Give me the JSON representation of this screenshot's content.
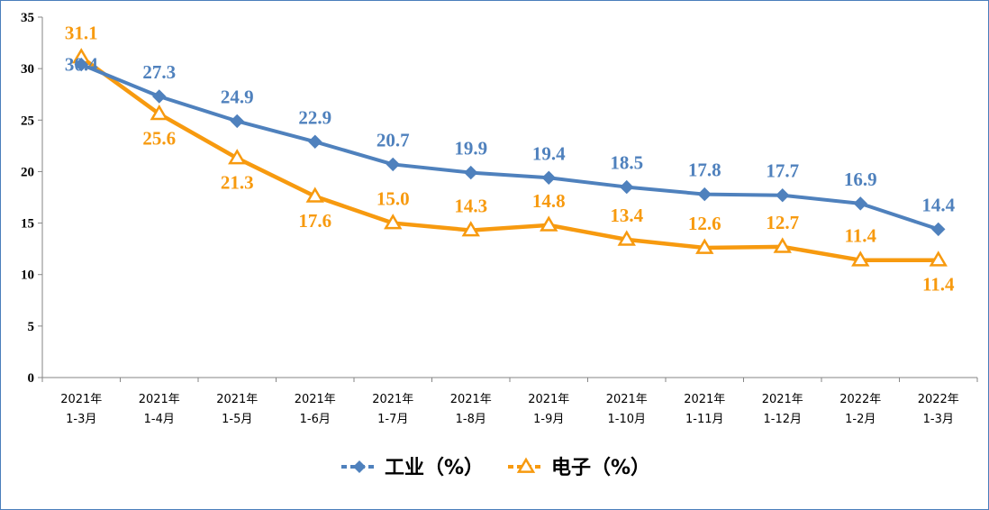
{
  "chart_data": {
    "type": "line",
    "title": "",
    "xlabel": "",
    "ylabel": "",
    "ylim": [
      0,
      35
    ],
    "yticks": [
      0,
      5,
      10,
      15,
      20,
      25,
      30,
      35
    ],
    "grid": false,
    "legend_position": "bottom",
    "categories": [
      [
        "2021年",
        "1-3月"
      ],
      [
        "2021年",
        "1-4月"
      ],
      [
        "2021年",
        "1-5月"
      ],
      [
        "2021年",
        "1-6月"
      ],
      [
        "2021年",
        "1-7月"
      ],
      [
        "2021年",
        "1-8月"
      ],
      [
        "2021年",
        "1-9月"
      ],
      [
        "2021年",
        "1-10月"
      ],
      [
        "2021年",
        "1-11月"
      ],
      [
        "2021年",
        "1-12月"
      ],
      [
        "2022年",
        "1-2月"
      ],
      [
        "2022年",
        "1-3月"
      ]
    ],
    "series": [
      {
        "name": "工业（%）",
        "color": "#4f81bd",
        "marker": "diamond",
        "values": [
          30.4,
          27.3,
          24.9,
          22.9,
          20.7,
          19.9,
          19.4,
          18.5,
          17.8,
          17.7,
          16.9,
          14.4
        ],
        "labels": [
          "30.4",
          "27.3",
          "24.9",
          "22.9",
          "20.7",
          "19.9",
          "19.4",
          "18.5",
          "17.8",
          "17.7",
          "16.9",
          "14.4"
        ]
      },
      {
        "name": "电子（%）",
        "color": "#f79a0f",
        "marker": "triangle",
        "values": [
          31.1,
          25.6,
          21.3,
          17.6,
          15.0,
          14.3,
          14.8,
          13.4,
          12.6,
          12.7,
          11.4,
          11.4
        ],
        "labels": [
          "31.1",
          "25.6",
          "21.3",
          "17.6",
          "15.0",
          "14.3",
          "14.8",
          "13.4",
          "12.6",
          "12.7",
          "11.4",
          "11.4"
        ]
      }
    ]
  }
}
